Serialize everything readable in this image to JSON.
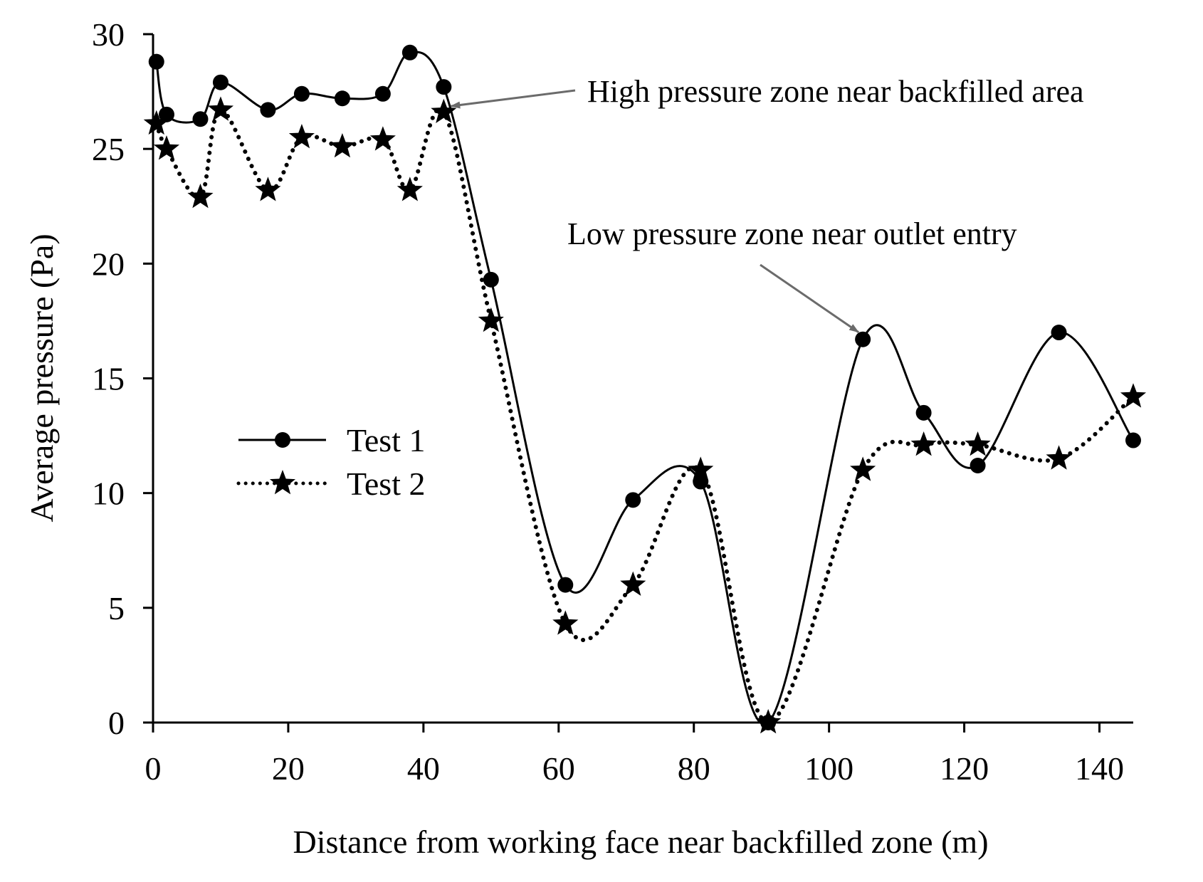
{
  "chart_data": {
    "type": "line",
    "title": "",
    "xlabel": "Distance from working face near backfilled zone (m)",
    "ylabel": "Average pressure (Pa)",
    "xlim": [
      0,
      145
    ],
    "ylim": [
      0,
      30
    ],
    "xticks": [
      0,
      20,
      40,
      60,
      80,
      100,
      120,
      140
    ],
    "yticks": [
      0,
      5,
      10,
      15,
      20,
      25,
      30
    ],
    "grid": false,
    "legend_position": "middle-left",
    "series": [
      {
        "name": "Test 1",
        "line_style": "solid",
        "marker": "circle",
        "x": [
          0.5,
          2,
          7,
          10,
          17,
          22,
          28,
          34,
          38,
          43,
          50,
          61,
          71,
          81,
          91,
          105,
          114,
          122,
          134,
          145
        ],
        "y": [
          28.8,
          26.5,
          26.3,
          27.9,
          26.7,
          27.4,
          27.2,
          27.4,
          29.2,
          27.7,
          19.3,
          6.0,
          9.7,
          10.5,
          0.0,
          16.7,
          13.5,
          11.2,
          17.0,
          12.3
        ]
      },
      {
        "name": "Test 2",
        "line_style": "dotted",
        "marker": "star",
        "x": [
          0.5,
          2,
          7,
          10,
          17,
          22,
          28,
          34,
          38,
          43,
          50,
          61,
          71,
          81,
          91,
          105,
          114,
          122,
          134,
          145
        ],
        "y": [
          26.1,
          25.0,
          22.9,
          26.7,
          23.2,
          25.5,
          25.1,
          25.4,
          23.2,
          26.6,
          17.5,
          4.3,
          6.0,
          11.0,
          0.0,
          11.0,
          12.1,
          12.1,
          11.5,
          14.2
        ]
      }
    ],
    "annotations": [
      {
        "text": "High pressure zone near backfilled area",
        "points_to": {
          "x": 43,
          "y": 26.8
        }
      },
      {
        "text": "Low pressure zone near outlet entry",
        "points_to": {
          "x": 105,
          "y": 16.7
        }
      }
    ]
  }
}
